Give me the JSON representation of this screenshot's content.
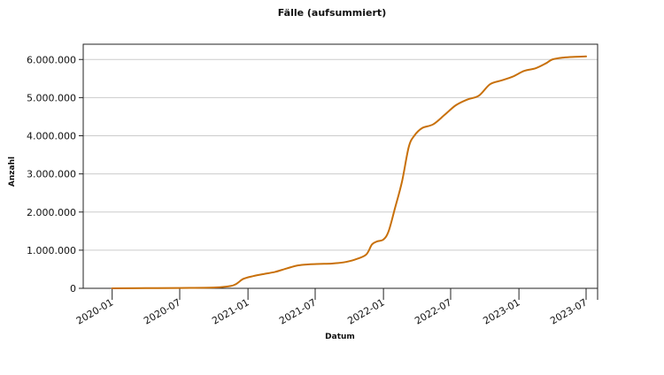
{
  "chart_data": {
    "type": "line",
    "title": "Fälle (aufsummiert)",
    "xlabel": "Datum",
    "ylabel": "Anzahl",
    "grid": "horizontal",
    "legend": "none",
    "x_ticks": [
      "2020-01",
      "2020-07",
      "2021-01",
      "2021-07",
      "2022-01",
      "2022-07",
      "2023-01",
      "2023-07"
    ],
    "x_range": [
      "2019-10-15",
      "2023-08-01"
    ],
    "y_ticks": [
      0,
      1000000,
      2000000,
      3000000,
      4000000,
      5000000,
      6000000
    ],
    "y_tick_labels": [
      "0",
      "1.000.000",
      "2.000.000",
      "3.000.000",
      "4.000.000",
      "5.000.000",
      "6.000.000"
    ],
    "ylim": [
      0,
      6400000
    ],
    "series": [
      {
        "color": "#c8700a",
        "points": [
          [
            "2020-01-01",
            0
          ],
          [
            "2020-04-01",
            5000
          ],
          [
            "2020-07-01",
            10000
          ],
          [
            "2020-10-01",
            20000
          ],
          [
            "2020-11-15",
            60000
          ],
          [
            "2020-12-01",
            120000
          ],
          [
            "2020-12-20",
            250000
          ],
          [
            "2021-01-15",
            320000
          ],
          [
            "2021-02-15",
            380000
          ],
          [
            "2021-03-15",
            430000
          ],
          [
            "2021-04-15",
            520000
          ],
          [
            "2021-05-15",
            600000
          ],
          [
            "2021-06-15",
            630000
          ],
          [
            "2021-07-15",
            640000
          ],
          [
            "2021-08-15",
            650000
          ],
          [
            "2021-09-15",
            680000
          ],
          [
            "2021-10-15",
            750000
          ],
          [
            "2021-11-15",
            880000
          ],
          [
            "2021-12-01",
            1150000
          ],
          [
            "2021-12-15",
            1230000
          ],
          [
            "2022-01-01",
            1280000
          ],
          [
            "2022-01-15",
            1500000
          ],
          [
            "2022-02-01",
            2100000
          ],
          [
            "2022-02-20",
            2800000
          ],
          [
            "2022-03-10",
            3700000
          ],
          [
            "2022-03-25",
            4000000
          ],
          [
            "2022-04-15",
            4200000
          ],
          [
            "2022-05-15",
            4300000
          ],
          [
            "2022-06-15",
            4550000
          ],
          [
            "2022-07-15",
            4800000
          ],
          [
            "2022-08-15",
            4950000
          ],
          [
            "2022-09-15",
            5050000
          ],
          [
            "2022-10-15",
            5350000
          ],
          [
            "2022-11-15",
            5450000
          ],
          [
            "2022-12-15",
            5550000
          ],
          [
            "2023-01-15",
            5700000
          ],
          [
            "2023-02-15",
            5770000
          ],
          [
            "2023-03-15",
            5900000
          ],
          [
            "2023-04-01",
            6000000
          ],
          [
            "2023-05-01",
            6050000
          ],
          [
            "2023-06-01",
            6070000
          ],
          [
            "2023-07-01",
            6080000
          ]
        ]
      }
    ]
  }
}
